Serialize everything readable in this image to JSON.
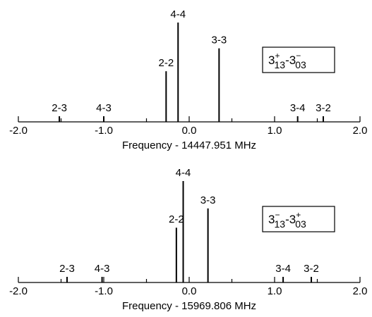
{
  "chart_data": [
    {
      "type": "stick",
      "xlabel": "Frequency - 14447.951 MHz",
      "xlim": [
        -2.0,
        2.0
      ],
      "xticks": [
        -2.0,
        -1.0,
        0.0,
        1.0,
        2.0
      ],
      "xtick_labels": [
        "-2.0",
        "-1.0",
        "0.0",
        "1.0",
        "2.0"
      ],
      "annotation": {
        "n1": "3",
        "sub1": "13",
        "sup1": "+",
        "sep": "-",
        "n2": "3",
        "sub2": "03",
        "sup2": "−"
      },
      "lines": [
        {
          "label": "2-3",
          "x": -1.52,
          "height": 0.0
        },
        {
          "label": "4-3",
          "x": -1.0,
          "height": 0.0
        },
        {
          "label": "2-2",
          "x": -0.27,
          "height": 0.51
        },
        {
          "label": "4-4",
          "x": -0.13,
          "height": 1.0
        },
        {
          "label": "3-3",
          "x": 0.35,
          "height": 0.74
        },
        {
          "label": "3-4",
          "x": 1.27,
          "height": 0.0
        },
        {
          "label": "3-2",
          "x": 1.57,
          "height": 0.0
        }
      ]
    },
    {
      "type": "stick",
      "xlabel": "Frequency - 15969.806 MHz",
      "xlim": [
        -2.0,
        2.0
      ],
      "xticks": [
        -2.0,
        -1.0,
        0.0,
        1.0,
        2.0
      ],
      "xtick_labels": [
        "-2.0",
        "-1.0",
        "0.0",
        "1.0",
        "2.0"
      ],
      "annotation": {
        "n1": "3",
        "sub1": "13",
        "sup1": "−",
        "sep": "-",
        "n2": "3",
        "sub2": "03",
        "sup2": "+"
      },
      "lines": [
        {
          "label": "2-3",
          "x": -1.43,
          "height": 0.0
        },
        {
          "label": "4-3",
          "x": -1.02,
          "height": 0.0
        },
        {
          "label": "2-2",
          "x": -0.15,
          "height": 0.54
        },
        {
          "label": "4-4",
          "x": -0.07,
          "height": 1.0
        },
        {
          "label": "3-3",
          "x": 0.22,
          "height": 0.73
        },
        {
          "label": "3-4",
          "x": 1.1,
          "height": 0.0
        },
        {
          "label": "3-2",
          "x": 1.43,
          "height": 0.0
        }
      ]
    }
  ]
}
